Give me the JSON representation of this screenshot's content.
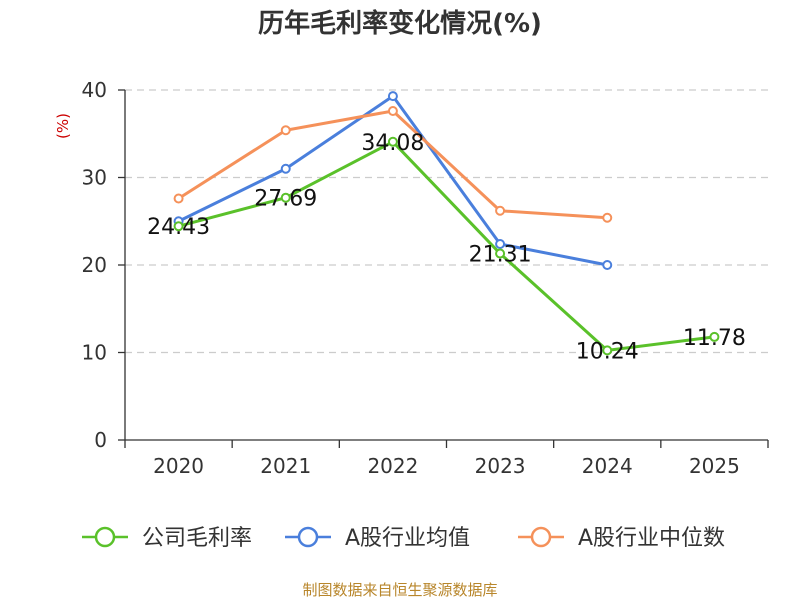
{
  "chart_data": {
    "type": "line",
    "title": "历年毛利率变化情况(%)",
    "ylabel": "(%)",
    "xlabel": "",
    "categories": [
      "2020",
      "2021",
      "2022",
      "2023",
      "2024",
      "2025"
    ],
    "ylim": [
      0,
      40
    ],
    "yticks": [
      0,
      10,
      20,
      30,
      40
    ],
    "grid": "horizontal-dashed",
    "legend_position": "bottom",
    "series": [
      {
        "name": "公司毛利率",
        "color": "#5ac12a",
        "values": [
          24.43,
          27.69,
          34.08,
          21.31,
          10.24,
          11.78
        ],
        "labels": [
          "24.43",
          "27.69",
          "34.08",
          "21.31",
          "10.24",
          "11.78"
        ]
      },
      {
        "name": "A股行业均值",
        "color": "#4a7fdc",
        "values": [
          25.0,
          31.0,
          39.3,
          22.4,
          20.0,
          null
        ]
      },
      {
        "name": "A股行业中位数",
        "color": "#f5915a",
        "values": [
          27.6,
          35.4,
          37.6,
          26.2,
          25.4,
          null
        ]
      }
    ]
  },
  "source_text": "制图数据来自恒生聚源数据库"
}
